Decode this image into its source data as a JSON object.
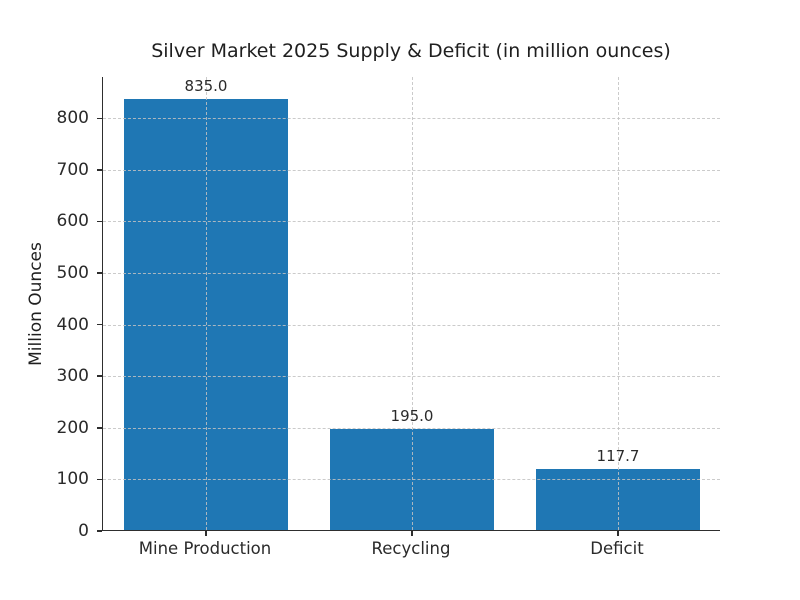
{
  "chart_data": {
    "type": "bar",
    "title": "Silver Market 2025 Supply & Deficit (in million ounces)",
    "ylabel": "Million Ounces",
    "xlabel": "",
    "categories": [
      "Mine Production",
      "Recycling",
      "Deficit"
    ],
    "values": [
      835.0,
      195.0,
      117.7
    ],
    "value_labels": [
      "835.0",
      "195.0",
      "117.7"
    ],
    "yticks": [
      0,
      100,
      200,
      300,
      400,
      500,
      600,
      700,
      800
    ],
    "ylim": [
      0,
      880
    ],
    "bar_width_fraction": 0.8,
    "legend_position": "none",
    "grid": "dashed horizontal lines at y-ticks and vertical lines at category centers, drawn above bars",
    "colors": {
      "bar": "#1f77b4",
      "grid": "#c3c3c3",
      "axis": "#2e2e2e",
      "text": "#2a2a2a",
      "background": "#ffffff"
    }
  }
}
